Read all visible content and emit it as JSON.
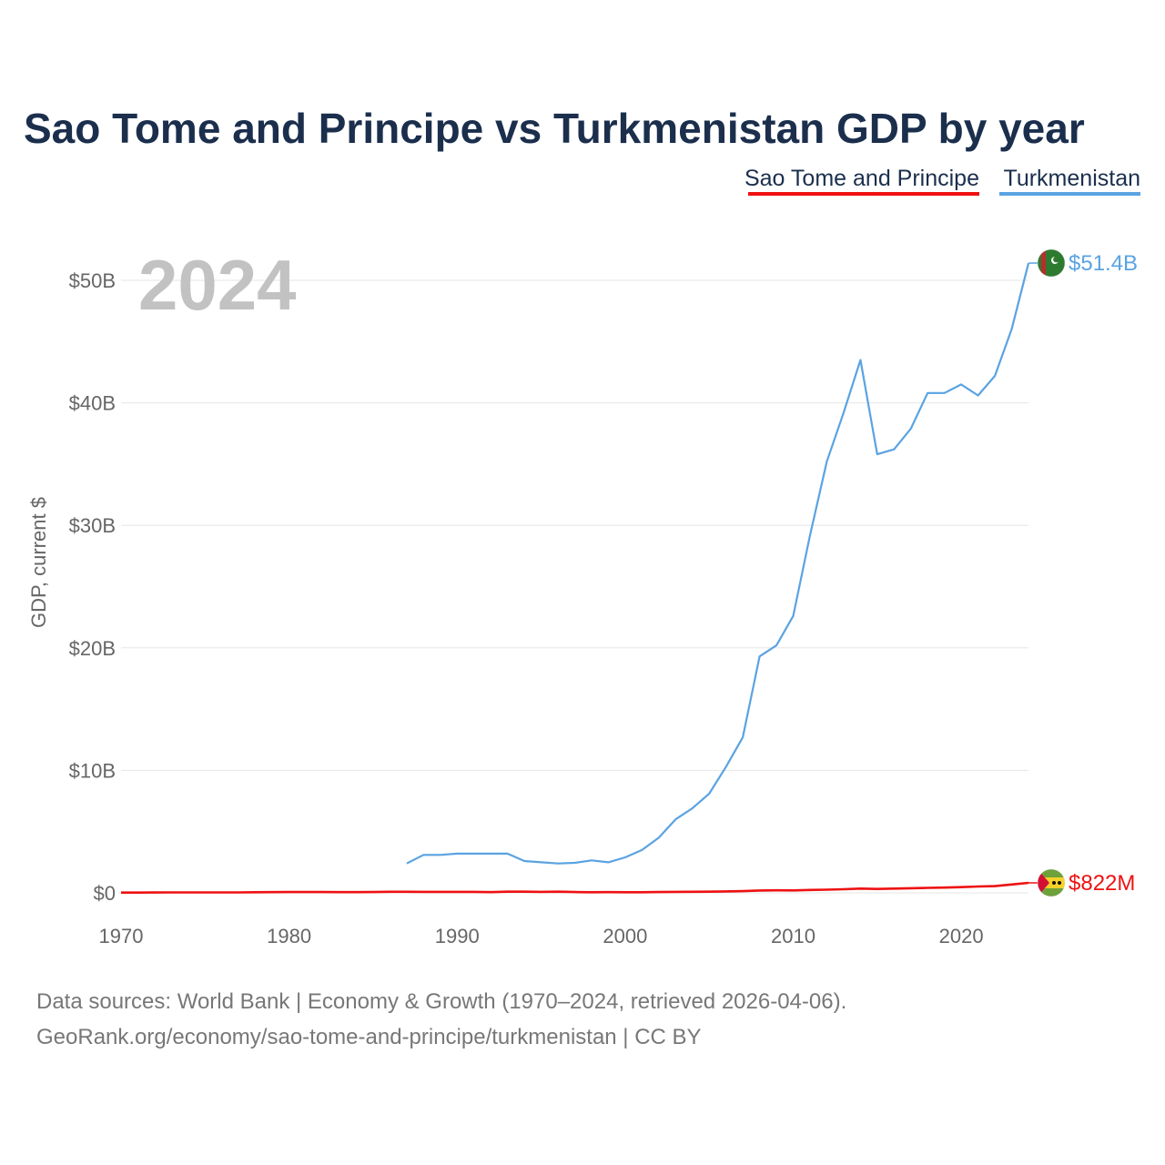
{
  "chart_data": {
    "type": "line",
    "title": "Sao Tome and Principe vs Turkmenistan GDP by year",
    "ylabel": "GDP, current $",
    "xlabel": "",
    "year_label": "2024",
    "xlim": [
      1970,
      2024
    ],
    "ylim": [
      0,
      55
    ],
    "y_unit": "billions USD",
    "x_ticks": [
      {
        "value": 1970,
        "label": "1970"
      },
      {
        "value": 1980,
        "label": "1980"
      },
      {
        "value": 1990,
        "label": "1990"
      },
      {
        "value": 2000,
        "label": "2000"
      },
      {
        "value": 2010,
        "label": "2010"
      },
      {
        "value": 2020,
        "label": "2020"
      }
    ],
    "y_ticks": [
      {
        "value": 0,
        "label": "$0"
      },
      {
        "value": 10,
        "label": "$10B"
      },
      {
        "value": 20,
        "label": "$20B"
      },
      {
        "value": 30,
        "label": "$30B"
      },
      {
        "value": 40,
        "label": "$40B"
      },
      {
        "value": 50,
        "label": "$50B"
      }
    ],
    "legend_position": "top-right",
    "series": [
      {
        "name": "Sao Tome and Principe",
        "color": "#ee1111",
        "end_label": "$822M",
        "flag": "sao-tome-and-principe-flag",
        "points": [
          [
            1970,
            0.02
          ],
          [
            1971,
            0.02
          ],
          [
            1972,
            0.03
          ],
          [
            1973,
            0.04
          ],
          [
            1974,
            0.04
          ],
          [
            1975,
            0.04
          ],
          [
            1976,
            0.04
          ],
          [
            1977,
            0.04
          ],
          [
            1978,
            0.05
          ],
          [
            1979,
            0.06
          ],
          [
            1980,
            0.07
          ],
          [
            1981,
            0.07
          ],
          [
            1982,
            0.07
          ],
          [
            1983,
            0.06
          ],
          [
            1984,
            0.06
          ],
          [
            1985,
            0.07
          ],
          [
            1986,
            0.09
          ],
          [
            1987,
            0.09
          ],
          [
            1988,
            0.08
          ],
          [
            1989,
            0.08
          ],
          [
            1990,
            0.08
          ],
          [
            1991,
            0.08
          ],
          [
            1992,
            0.06
          ],
          [
            1993,
            0.1
          ],
          [
            1994,
            0.1
          ],
          [
            1995,
            0.08
          ],
          [
            1996,
            0.1
          ],
          [
            1997,
            0.07
          ],
          [
            1998,
            0.05
          ],
          [
            1999,
            0.06
          ],
          [
            2000,
            0.05
          ],
          [
            2001,
            0.05
          ],
          [
            2002,
            0.07
          ],
          [
            2003,
            0.08
          ],
          [
            2004,
            0.09
          ],
          [
            2005,
            0.1
          ],
          [
            2006,
            0.12
          ],
          [
            2007,
            0.14
          ],
          [
            2008,
            0.19
          ],
          [
            2009,
            0.21
          ],
          [
            2010,
            0.2
          ],
          [
            2011,
            0.24
          ],
          [
            2012,
            0.26
          ],
          [
            2013,
            0.3
          ],
          [
            2014,
            0.35
          ],
          [
            2015,
            0.32
          ],
          [
            2016,
            0.35
          ],
          [
            2017,
            0.38
          ],
          [
            2018,
            0.41
          ],
          [
            2019,
            0.43
          ],
          [
            2020,
            0.47
          ],
          [
            2021,
            0.52
          ],
          [
            2022,
            0.55
          ],
          [
            2023,
            0.68
          ],
          [
            2024,
            0.82
          ]
        ]
      },
      {
        "name": "Turkmenistan",
        "color": "#5aa3e2",
        "end_label": "$51.4B",
        "flag": "turkmenistan-flag",
        "points": [
          [
            1987,
            2.4
          ],
          [
            1988,
            3.1
          ],
          [
            1989,
            3.1
          ],
          [
            1990,
            3.2
          ],
          [
            1991,
            3.2
          ],
          [
            1992,
            3.2
          ],
          [
            1993,
            3.2
          ],
          [
            1994,
            2.6
          ],
          [
            1995,
            2.5
          ],
          [
            1996,
            2.4
          ],
          [
            1997,
            2.45
          ],
          [
            1998,
            2.65
          ],
          [
            1999,
            2.5
          ],
          [
            2000,
            2.9
          ],
          [
            2001,
            3.5
          ],
          [
            2002,
            4.5
          ],
          [
            2003,
            6.0
          ],
          [
            2004,
            6.9
          ],
          [
            2005,
            8.1
          ],
          [
            2006,
            10.3
          ],
          [
            2007,
            12.7
          ],
          [
            2008,
            19.3
          ],
          [
            2009,
            20.2
          ],
          [
            2010,
            22.6
          ],
          [
            2011,
            29.2
          ],
          [
            2012,
            35.2
          ],
          [
            2013,
            39.2
          ],
          [
            2014,
            43.5
          ],
          [
            2015,
            35.8
          ],
          [
            2016,
            36.2
          ],
          [
            2017,
            37.9
          ],
          [
            2018,
            40.8
          ],
          [
            2019,
            40.8
          ],
          [
            2020,
            41.5
          ],
          [
            2021,
            40.6
          ],
          [
            2022,
            42.2
          ],
          [
            2023,
            46.0
          ],
          [
            2024,
            51.4
          ]
        ]
      }
    ]
  },
  "footer": {
    "source_line1": "Data sources: World Bank | Economy & Growth (1970–2024, retrieved 2026-04-06).",
    "source_line2": "GeoRank.org/economy/sao-tome-and-principe/turkmenistan | CC BY"
  },
  "colors": {
    "title": "#1b2f4d",
    "axis_text": "#666666",
    "grid": "#e6e6e6",
    "watermark": "#c2c2c2"
  }
}
